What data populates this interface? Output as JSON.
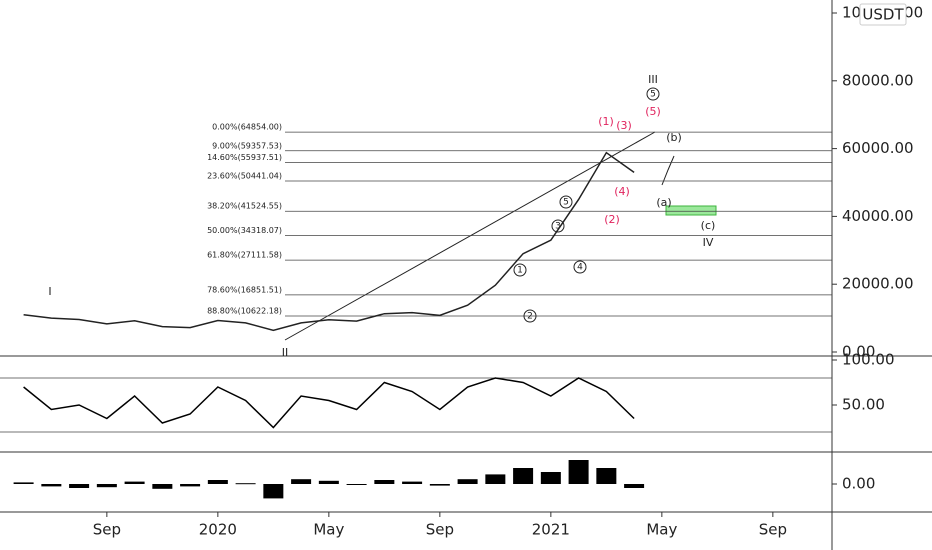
{
  "chart_data": [
    {
      "type": "line",
      "currency": "USDT",
      "categories": [
        null,
        null,
        null,
        "Sep",
        null,
        null,
        null,
        "2020",
        null,
        null,
        null,
        "May",
        null,
        null,
        null,
        "Sep",
        null,
        null,
        null,
        "2021",
        null,
        null,
        null,
        "May",
        null,
        null,
        null,
        "Sep",
        null
      ],
      "values": [
        11000,
        10000,
        9600,
        8300,
        9200,
        7500,
        7200,
        9300,
        8600,
        6400,
        8600,
        9500,
        9100,
        11300,
        11600,
        10800,
        13800,
        19700,
        29000,
        33000,
        45000,
        58800,
        53000,
        null,
        null,
        null,
        null,
        null,
        null
      ],
      "color": "#222222",
      "ylim": [
        0,
        100000
      ],
      "yticks": [
        {
          "value": 0,
          "label": "0.00"
        },
        {
          "value": 20000,
          "label": "20000.00"
        },
        {
          "value": 40000,
          "label": "40000.00"
        },
        {
          "value": 60000,
          "label": "60000.00"
        },
        {
          "value": 80000,
          "label": "80000.00"
        },
        {
          "value": 100000,
          "label": "100000.00"
        }
      ],
      "fib_levels": [
        {
          "value": 64854,
          "label": "0.00%(64854.00)"
        },
        {
          "value": 59357.53,
          "label": "9.00%(59357.53)"
        },
        {
          "value": 55937.51,
          "label": "14.60%(55937.51)"
        },
        {
          "value": 50441.04,
          "label": "23.60%(50441.04)"
        },
        {
          "value": 41524.55,
          "label": "38.20%(41524.55)"
        },
        {
          "value": 34318.07,
          "label": "50.00%(34318.07)"
        },
        {
          "value": 27111.58,
          "label": "61.80%(27111.58)"
        },
        {
          "value": 16851.51,
          "label": "78.60%(16851.51)"
        },
        {
          "value": 10622.18,
          "label": "88.80%(10622.18)"
        }
      ],
      "annotations": [
        "I",
        "II",
        "III",
        "5",
        "(5)",
        "(1)",
        "(3)",
        "(b)",
        "(a)",
        "(c)",
        "IV",
        "1",
        "2",
        "3",
        "4",
        "5",
        "(2)",
        "(4)"
      ]
    },
    {
      "type": "line",
      "color": "#000000",
      "values": [
        70,
        45,
        50,
        35,
        60,
        30,
        40,
        70,
        55,
        25,
        60,
        55,
        45,
        75,
        65,
        45,
        70,
        80,
        75,
        60,
        80,
        65,
        35,
        null,
        null,
        null,
        null,
        null,
        null
      ],
      "ylim": [
        0,
        100
      ],
      "yticks": [
        {
          "value": 50,
          "label": "50.00"
        },
        {
          "value": 100,
          "label": "100.00"
        }
      ],
      "bands": [
        20,
        80
      ]
    },
    {
      "type": "bar",
      "color": "#000000",
      "values": [
        200,
        -300,
        -500,
        -400,
        300,
        -600,
        -300,
        500,
        100,
        -1800,
        600,
        400,
        -100,
        500,
        300,
        -200,
        600,
        1200,
        2000,
        1500,
        3000,
        2000,
        -500,
        null,
        null,
        null,
        null,
        null,
        null
      ],
      "ylim": [
        -3500,
        3500
      ],
      "yticks": [
        {
          "value": 0,
          "label": "0.00"
        }
      ]
    }
  ]
}
